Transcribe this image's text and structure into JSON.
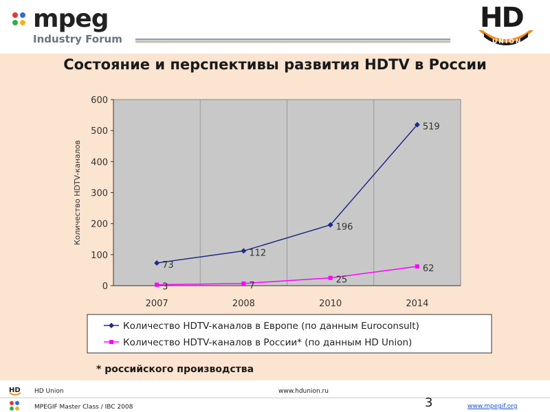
{
  "header": {
    "mpeg_logo_main": "mpeg",
    "mpeg_logo_sub": "Industry Forum",
    "hd_logo_main": "HD",
    "hd_logo_sub": "UNION"
  },
  "slide": {
    "title": "Состояние и перспективы развития HDTV в России",
    "footnote": "* российского производства"
  },
  "footer": {
    "left_top": "HD Union",
    "center_url": "www.hdunion.ru",
    "left_bottom": "MPEGIF Master Class / IBC 2008",
    "page_number": "3",
    "right_url": "www.mpegif.org"
  },
  "colors": {
    "content_bg": "#fbe4d0",
    "plot_bg": "#c8c8c8",
    "series_europe": "#1f2a8a",
    "series_russia": "#ff00ff"
  },
  "chart_data": {
    "type": "line",
    "categories": [
      "2007",
      "2008",
      "2010",
      "2014"
    ],
    "series": [
      {
        "name": "Количество HDTV-каналов в Европе (по данным Euroconsult)",
        "values": [
          73,
          112,
          196,
          519
        ],
        "color": "#1f2a8a",
        "marker": "diamond"
      },
      {
        "name": "Количество HDTV-каналов в России* (по данным HD Union)",
        "values": [
          3,
          7,
          25,
          62
        ],
        "color": "#ff00ff",
        "marker": "square"
      }
    ],
    "ylabel": "Количество HDTV-каналов",
    "xlabel": "",
    "ylim": [
      0,
      600
    ],
    "yticks": [
      0,
      100,
      200,
      300,
      400,
      500,
      600
    ],
    "grid": "vertical",
    "legend_position": "bottom"
  }
}
